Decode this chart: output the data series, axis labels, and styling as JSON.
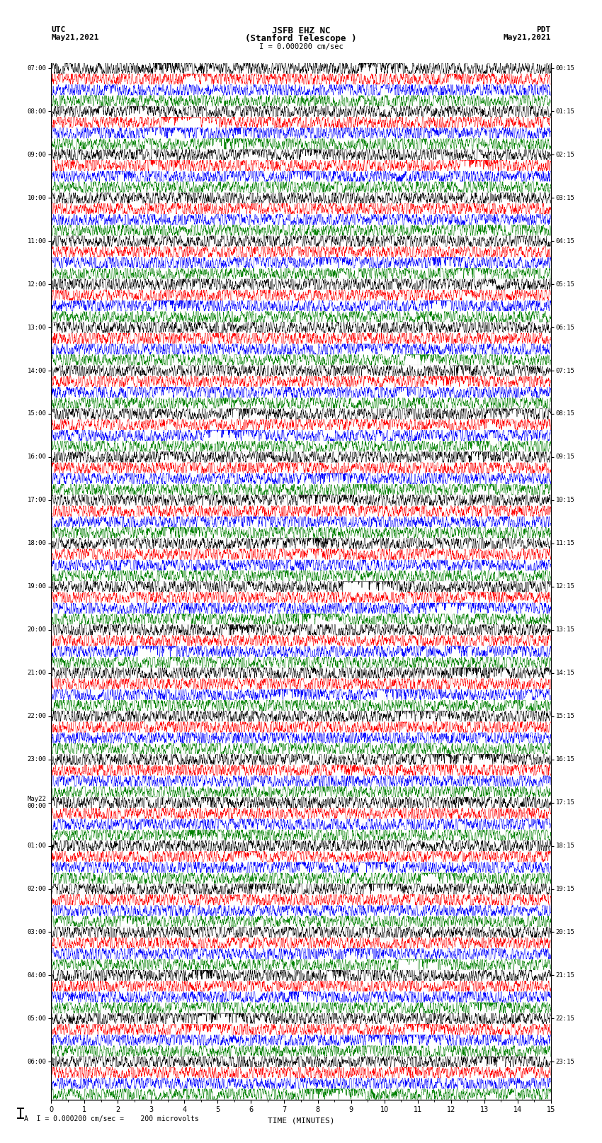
{
  "title_line1": "JSFB EHZ NC",
  "title_line2": "(Stanford Telescope )",
  "scale_label": "I = 0.000200 cm/sec",
  "footer_label": "A  I = 0.000200 cm/sec =    200 microvolts",
  "xlabel": "TIME (MINUTES)",
  "left_times_utc": [
    "07:00",
    "08:00",
    "09:00",
    "10:00",
    "11:00",
    "12:00",
    "13:00",
    "14:00",
    "15:00",
    "16:00",
    "17:00",
    "18:00",
    "19:00",
    "20:00",
    "21:00",
    "22:00",
    "23:00",
    "May22\n00:00",
    "01:00",
    "02:00",
    "03:00",
    "04:00",
    "05:00",
    "06:00"
  ],
  "right_times_pdt": [
    "00:15",
    "01:15",
    "02:15",
    "03:15",
    "04:15",
    "05:15",
    "06:15",
    "07:15",
    "08:15",
    "09:15",
    "10:15",
    "11:15",
    "12:15",
    "13:15",
    "14:15",
    "15:15",
    "16:15",
    "17:15",
    "18:15",
    "19:15",
    "20:15",
    "21:15",
    "22:15",
    "23:15"
  ],
  "num_rows": 24,
  "traces_per_row": 4,
  "colors": [
    "black",
    "red",
    "blue",
    "green"
  ],
  "minutes": 15,
  "bg_color": "white",
  "noise_seed": 42
}
